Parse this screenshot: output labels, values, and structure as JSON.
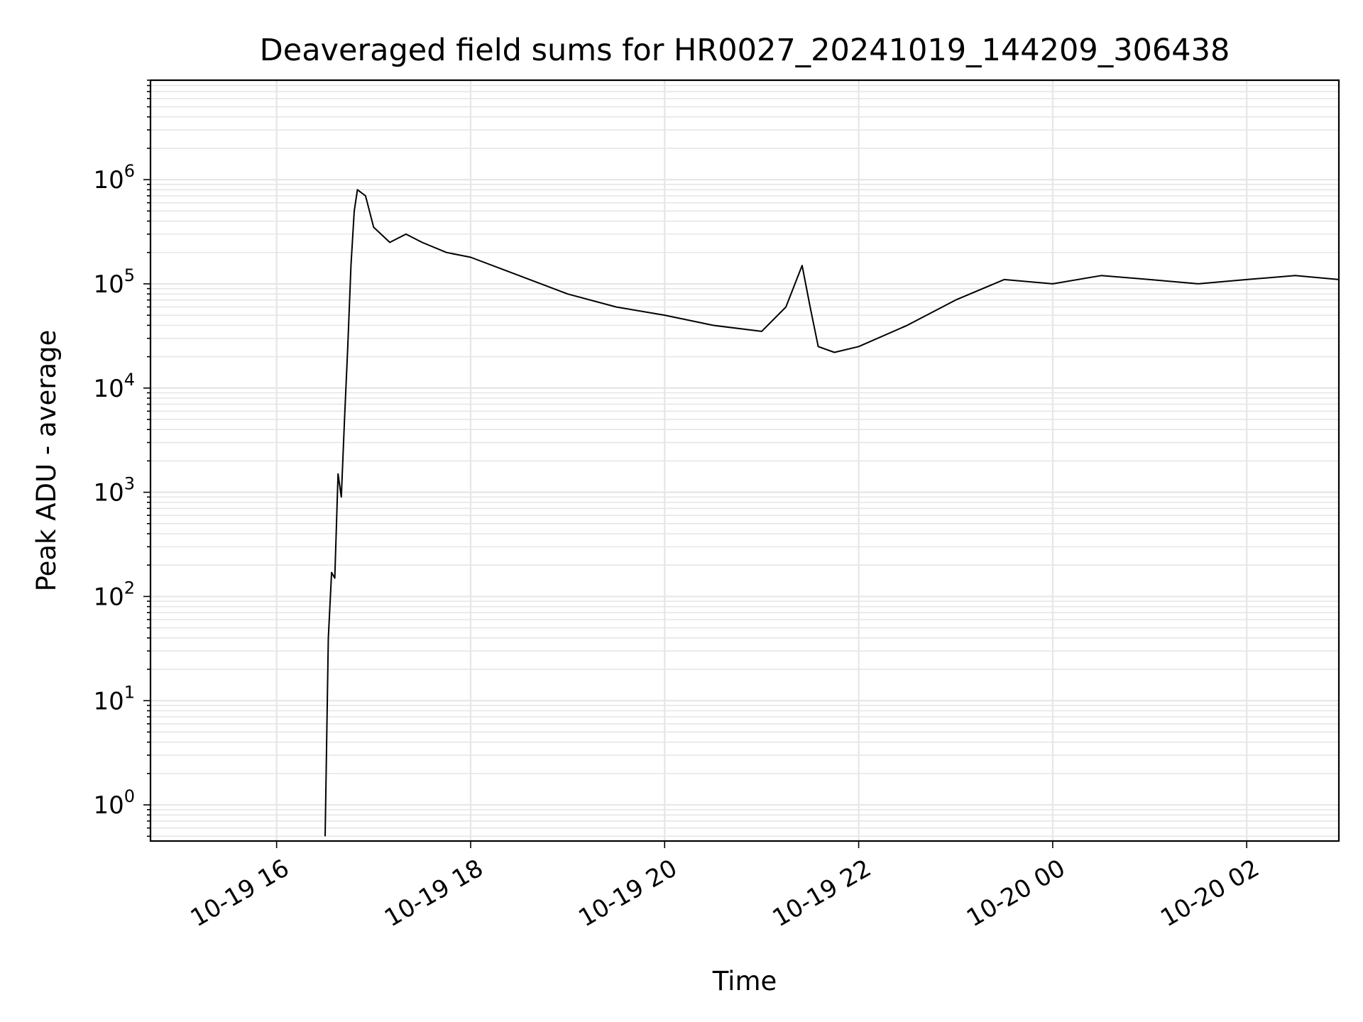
{
  "chart_data": {
    "type": "line",
    "title": "Deaveraged field sums for HR0027_20241019_144209_306438",
    "xlabel": "Time",
    "ylabel": "Peak ADU - average",
    "y_scale": "log",
    "y_range": [
      0.45,
      9000000
    ],
    "x_range": [
      "2024-10-19 14:42",
      "2024-10-20 02:57"
    ],
    "x_ticks": [
      {
        "value": "2024-10-19 16:00",
        "label": "10-19 16"
      },
      {
        "value": "2024-10-19 18:00",
        "label": "10-19 18"
      },
      {
        "value": "2024-10-19 20:00",
        "label": "10-19 20"
      },
      {
        "value": "2024-10-19 22:00",
        "label": "10-19 22"
      },
      {
        "value": "2024-10-20 00:00",
        "label": "10-20 00"
      },
      {
        "value": "2024-10-20 02:00",
        "label": "10-20 02"
      }
    ],
    "y_ticks": [
      {
        "value": 1,
        "base": "10",
        "exp": "0"
      },
      {
        "value": 10,
        "base": "10",
        "exp": "1"
      },
      {
        "value": 100,
        "base": "10",
        "exp": "2"
      },
      {
        "value": 1000,
        "base": "10",
        "exp": "3"
      },
      {
        "value": 10000,
        "base": "10",
        "exp": "4"
      },
      {
        "value": 100000,
        "base": "10",
        "exp": "5"
      },
      {
        "value": 1000000,
        "base": "10",
        "exp": "6"
      }
    ],
    "grid": true,
    "series": [
      {
        "color": "#000000",
        "x": [
          "2024-10-19 16:30",
          "2024-10-19 16:32",
          "2024-10-19 16:34",
          "2024-10-19 16:36",
          "2024-10-19 16:38",
          "2024-10-19 16:40",
          "2024-10-19 16:42",
          "2024-10-19 16:44",
          "2024-10-19 16:46",
          "2024-10-19 16:48",
          "2024-10-19 16:50",
          "2024-10-19 16:55",
          "2024-10-19 17:00",
          "2024-10-19 17:10",
          "2024-10-19 17:20",
          "2024-10-19 17:30",
          "2024-10-19 17:45",
          "2024-10-19 18:00",
          "2024-10-19 18:30",
          "2024-10-19 19:00",
          "2024-10-19 19:30",
          "2024-10-19 20:00",
          "2024-10-19 20:30",
          "2024-10-19 21:00",
          "2024-10-19 21:15",
          "2024-10-19 21:25",
          "2024-10-19 21:30",
          "2024-10-19 21:35",
          "2024-10-19 21:45",
          "2024-10-19 22:00",
          "2024-10-19 22:30",
          "2024-10-19 23:00",
          "2024-10-19 23:30",
          "2024-10-20 00:00",
          "2024-10-20 00:30",
          "2024-10-20 01:00",
          "2024-10-20 01:30",
          "2024-10-20 02:00",
          "2024-10-20 02:30",
          "2024-10-20 02:57"
        ],
        "values": [
          0.5,
          40,
          170,
          150,
          1500,
          900,
          5000,
          25000,
          150000,
          500000,
          800000,
          700000,
          350000,
          250000,
          300000,
          250000,
          200000,
          180000,
          120000,
          80000,
          60000,
          50000,
          40000,
          35000,
          60000,
          150000,
          60000,
          25000,
          22000,
          25000,
          40000,
          70000,
          110000,
          100000,
          120000,
          110000,
          100000,
          110000,
          120000,
          110000
        ]
      }
    ]
  }
}
